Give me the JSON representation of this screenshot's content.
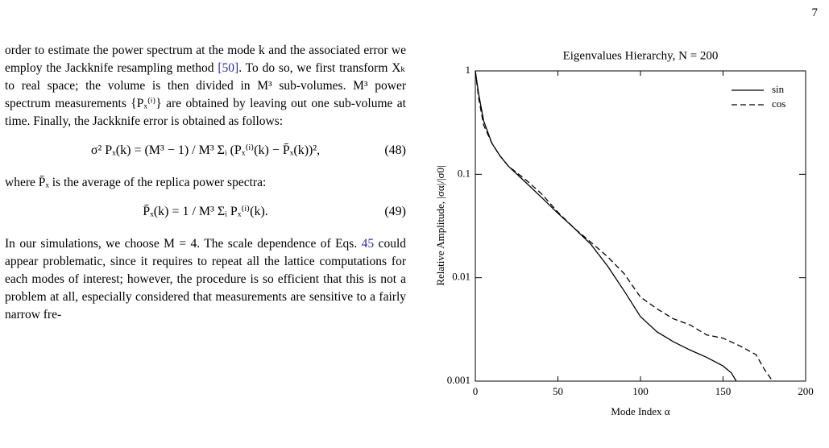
{
  "page_number": "7",
  "paragraphs": [
    [
      "order to estimate the power spectrum at the mode k and the associated error we employ the Jackknife resampling method ",
      "[50]",
      ". To do so, we first transform Xₖ to real space; the volume is then divided in M³ sub-volumes. M³ power spectrum measurements {Pₓ⁽ⁱ⁾} are obtained by leaving out one sub-volume at time. Finally, the Jackknife error is obtained as follows:"
    ],
    [
      "where P̄ₓ is the average of the replica power spectra:"
    ],
    [
      "In our simulations, we choose M = 4. The scale dependence of Eqs. ",
      "45",
      " could appear problematic, since it requires to repeat all the lattice computations for each modes of interest; however, the procedure is so efficient that this is not a problem at all, especially considered that measurements are sensitive to a fairly narrow fre-"
    ]
  ],
  "equations": [
    {
      "body": "σ² Pₓ(k) = (M³ − 1) / M³ Σᵢ (Pₓ⁽ⁱ⁾(k) − P̄ₓ(k))²,",
      "number": "(48)"
    },
    {
      "body": "P̄ₓ(k) = 1 / M³ Σᵢ Pₓ⁽ⁱ⁾(k).",
      "number": "(49)"
    }
  ],
  "chart_data": {
    "type": "line",
    "title": "Eigenvalues Hierarchy, N = 200",
    "xlabel": "Mode Index α",
    "ylabel": "Relative Amplitude, |σα|/|σ0|",
    "xlim": [
      0,
      200
    ],
    "xticks": [
      0,
      50,
      100,
      150,
      200
    ],
    "ylim": [
      0.001,
      1
    ],
    "yticks": [
      0.001,
      0.01,
      0.1,
      1
    ],
    "yscale": "log",
    "legend": "upper right",
    "series": [
      {
        "name": "sin",
        "color": "#000000",
        "linestyle": "solid",
        "x": [
          0,
          2,
          5,
          10,
          15,
          20,
          30,
          40,
          50,
          60,
          70,
          80,
          90,
          100,
          110,
          120,
          130,
          140,
          150,
          155,
          158
        ],
        "values": [
          1,
          0.6,
          0.33,
          0.2,
          0.15,
          0.12,
          0.085,
          0.06,
          0.042,
          0.03,
          0.021,
          0.013,
          0.0075,
          0.0042,
          0.003,
          0.0024,
          0.002,
          0.0017,
          0.0014,
          0.0012,
          0.001
        ]
      },
      {
        "name": "cos",
        "color": "#000000",
        "linestyle": "dashed",
        "x": [
          0,
          2,
          5,
          10,
          15,
          20,
          30,
          40,
          50,
          60,
          70,
          80,
          90,
          100,
          110,
          120,
          130,
          140,
          150,
          160,
          170,
          175,
          180
        ],
        "values": [
          1,
          0.55,
          0.3,
          0.2,
          0.15,
          0.12,
          0.09,
          0.065,
          0.043,
          0.03,
          0.022,
          0.016,
          0.011,
          0.0065,
          0.005,
          0.004,
          0.0035,
          0.0028,
          0.0026,
          0.0022,
          0.0018,
          0.0013,
          0.001
        ]
      }
    ]
  }
}
